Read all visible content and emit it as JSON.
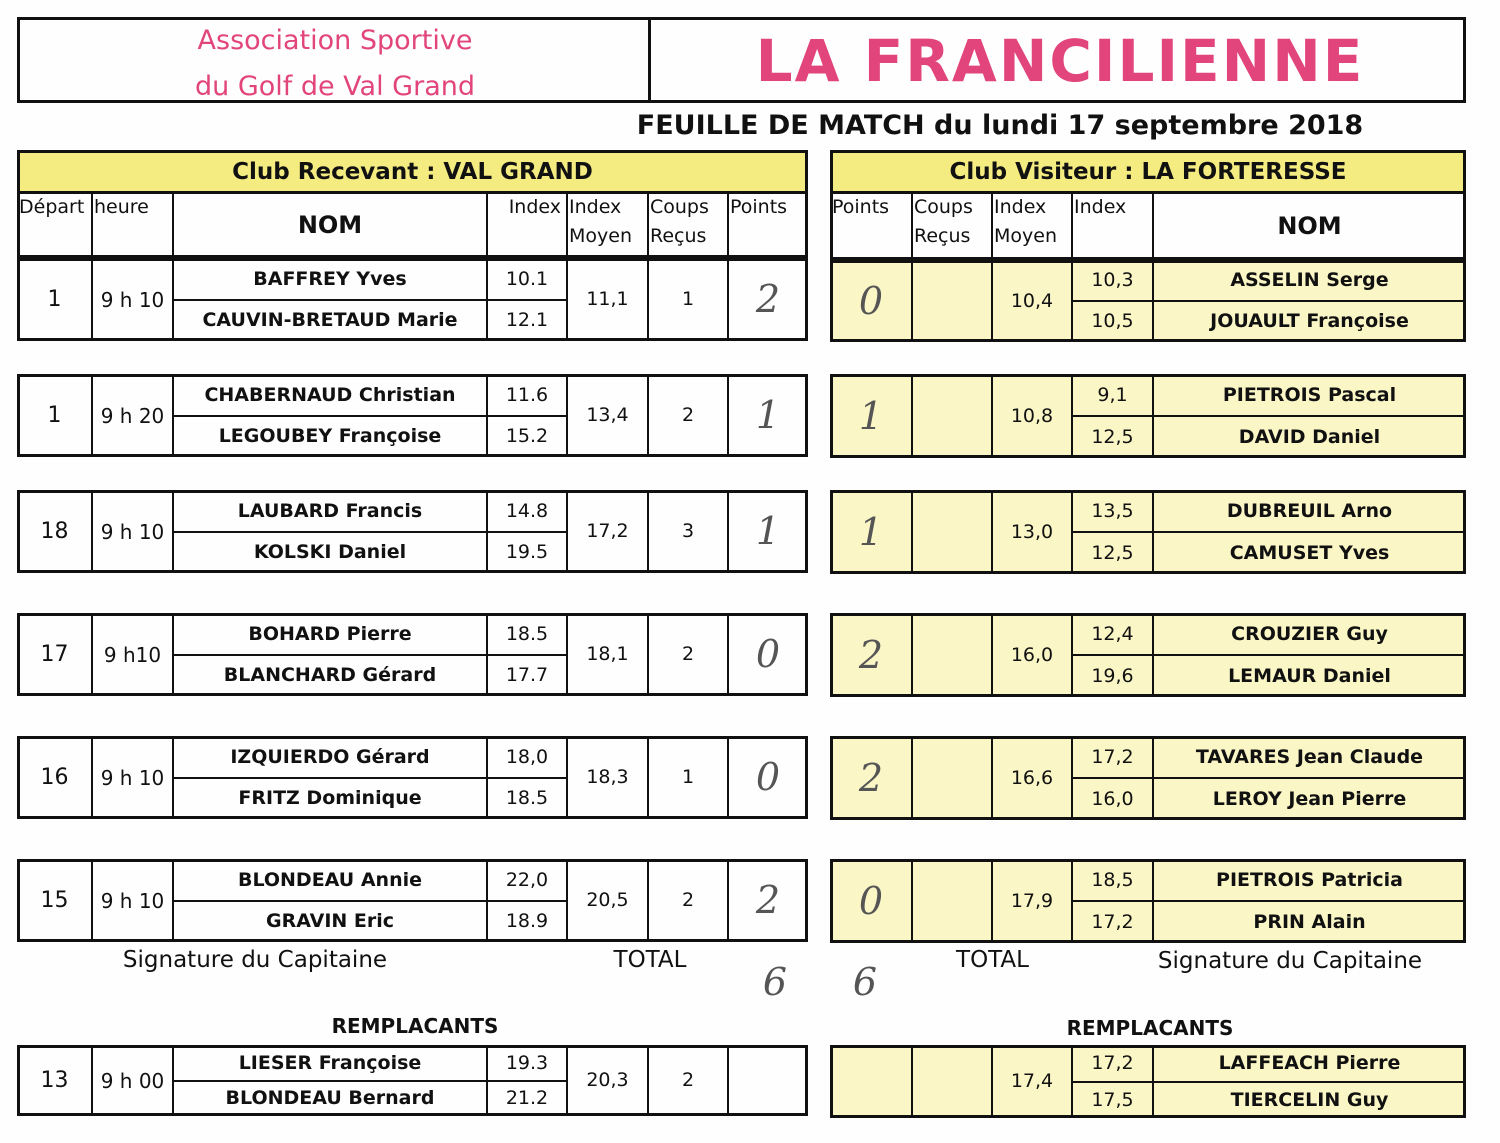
{
  "header": {
    "association": [
      "Association Sportive",
      "du Golf de Val Grand"
    ],
    "title": "LA FRANCILIENNE",
    "subtitle": "FEUILLE DE MATCH du lundi 17 septembre 2018"
  },
  "home": {
    "title": "Club Recevant  :  VAL GRAND",
    "columns": [
      "Départ",
      "heure",
      "NOM",
      "Index",
      "Index Moyen",
      "Coups Reçus",
      "Points"
    ],
    "matches": [
      {
        "depart": "1",
        "heure": "9 h 10",
        "players": [
          {
            "nom": "BAFFREY Yves",
            "index": "10.1"
          },
          {
            "nom": "CAUVIN-BRETAUD Marie",
            "index": "12.1"
          }
        ],
        "moyen": "11,1",
        "coups": "1",
        "points": "2"
      },
      {
        "depart": "1",
        "heure": "9 h 20",
        "players": [
          {
            "nom": "CHABERNAUD Christian",
            "index": "11.6"
          },
          {
            "nom": "LEGOUBEY Françoise",
            "index": "15.2"
          }
        ],
        "moyen": "13,4",
        "coups": "2",
        "points": "1"
      },
      {
        "depart": "18",
        "heure": "9 h 10",
        "players": [
          {
            "nom": "LAUBARD Francis",
            "index": "14.8"
          },
          {
            "nom": "KOLSKI Daniel",
            "index": "19.5"
          }
        ],
        "moyen": "17,2",
        "coups": "3",
        "points": "1"
      },
      {
        "depart": "17",
        "heure": "9 h10",
        "players": [
          {
            "nom": "BOHARD Pierre",
            "index": "18.5"
          },
          {
            "nom": "BLANCHARD Gérard",
            "index": "17.7"
          }
        ],
        "moyen": "18,1",
        "coups": "2",
        "points": "0"
      },
      {
        "depart": "16",
        "heure": "9 h 10",
        "players": [
          {
            "nom": "IZQUIERDO Gérard",
            "index": "18,0"
          },
          {
            "nom": "FRITZ Dominique",
            "index": "18.5"
          }
        ],
        "moyen": "18,3",
        "coups": "1",
        "points": "0"
      },
      {
        "depart": "15",
        "heure": "9 h 10",
        "players": [
          {
            "nom": "BLONDEAU Annie",
            "index": "22,0"
          },
          {
            "nom": "GRAVIN Eric",
            "index": "18.9"
          }
        ],
        "moyen": "20,5",
        "coups": "2",
        "points": "2"
      }
    ],
    "signature": "Signature du Capitaine",
    "total_label": "TOTAL",
    "total": "6",
    "replacements_title": "REMPLACANTS",
    "replacement": {
      "depart": "13",
      "heure": "9 h 00",
      "players": [
        {
          "nom": "LIESER Françoise",
          "index": "19.3"
        },
        {
          "nom": "BLONDEAU Bernard",
          "index": "21.2"
        }
      ],
      "moyen": "20,3",
      "coups": "2"
    }
  },
  "away": {
    "title": "Club Visiteur  :  LA FORTERESSE",
    "columns": [
      "Points",
      "Coups Reçus",
      "Index Moyen",
      "Index",
      "NOM"
    ],
    "matches": [
      {
        "points": "0",
        "moyen": "10,4",
        "players": [
          {
            "nom": "ASSELIN Serge",
            "index": "10,3"
          },
          {
            "nom": "JOUAULT Françoise",
            "index": "10,5"
          }
        ]
      },
      {
        "points": "1",
        "moyen": "10,8",
        "players": [
          {
            "nom": "PIETROIS Pascal",
            "index": "9,1"
          },
          {
            "nom": "DAVID Daniel",
            "index": "12,5"
          }
        ]
      },
      {
        "points": "1",
        "moyen": "13,0",
        "players": [
          {
            "nom": "DUBREUIL Arno",
            "index": "13,5"
          },
          {
            "nom": "CAMUSET Yves",
            "index": "12,5"
          }
        ]
      },
      {
        "points": "2",
        "moyen": "16,0",
        "players": [
          {
            "nom": "CROUZIER Guy",
            "index": "12,4"
          },
          {
            "nom": "LEMAUR Daniel",
            "index": "19,6"
          }
        ]
      },
      {
        "points": "2",
        "moyen": "16,6",
        "players": [
          {
            "nom": "TAVARES Jean Claude",
            "index": "17,2"
          },
          {
            "nom": "LEROY Jean Pierre",
            "index": "16,0"
          }
        ]
      },
      {
        "points": "0",
        "moyen": "17,9",
        "players": [
          {
            "nom": "PIETROIS Patricia",
            "index": "18,5"
          },
          {
            "nom": "PRIN Alain",
            "index": "17,2"
          }
        ]
      }
    ],
    "signature": "Signature du Capitaine",
    "total_label": "TOTAL",
    "total": "6",
    "replacements_title": "REMPLACANTS",
    "replacement": {
      "moyen": "17,4",
      "players": [
        {
          "nom": "LAFFEACH Pierre",
          "index": "17,2"
        },
        {
          "nom": "TIERCELIN Guy",
          "index": "17,5"
        }
      ]
    }
  }
}
